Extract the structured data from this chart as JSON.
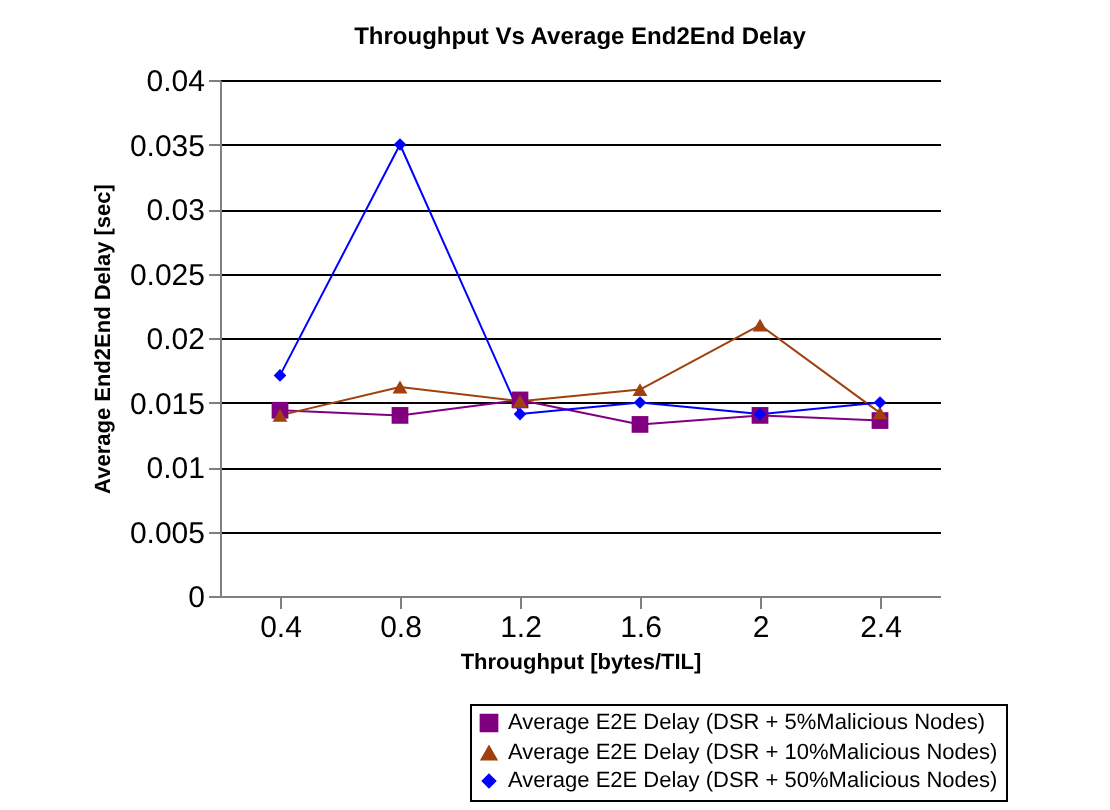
{
  "chart_data": {
    "type": "line",
    "title": "Throughput Vs Average End2End Delay",
    "xlabel": "Throughput [bytes/TIL]",
    "ylabel": "Average End2End Delay [sec]",
    "categories": [
      "0.4",
      "0.8",
      "1.2",
      "1.6",
      "2",
      "2.4"
    ],
    "series": [
      {
        "name": "Average E2E Delay (DSR + 5%Malicious Nodes)",
        "color": "#800080",
        "marker": "square",
        "values": [
          0.0144,
          0.014,
          0.0152,
          0.0133,
          0.014,
          0.0136
        ]
      },
      {
        "name": "Average E2E Delay (DSR + 10%Malicious Nodes)",
        "color": "#a0410d",
        "marker": "triangle",
        "values": [
          0.014,
          0.0162,
          0.0151,
          0.016,
          0.021,
          0.0142
        ]
      },
      {
        "name": "Average E2E Delay (DSR + 50%Malicious Nodes)",
        "color": "#0000ff",
        "marker": "diamond",
        "values": [
          0.0171,
          0.035,
          0.0141,
          0.015,
          0.0141,
          0.015
        ]
      }
    ],
    "ylim": [
      0,
      0.04
    ],
    "yticks": [
      0,
      0.005,
      0.01,
      0.015,
      0.02,
      0.025,
      0.03,
      0.035,
      0.04
    ],
    "grid": "y",
    "legend": "bottom right",
    "line_style": "solid"
  }
}
